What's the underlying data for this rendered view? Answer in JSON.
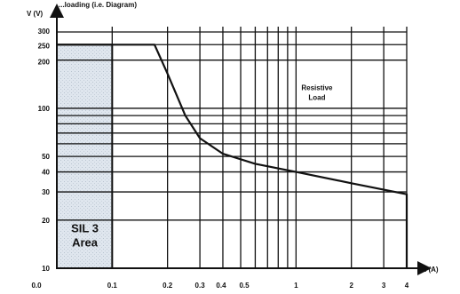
{
  "header": {
    "text": "...loading (i.e. Diagram)"
  },
  "chart_data": {
    "type": "line",
    "xlabel": "I (A)",
    "ylabel": "V (V)",
    "x_scale": "log",
    "y_scale": "log",
    "xlim": [
      0.05,
      4
    ],
    "ylim": [
      10,
      300
    ],
    "x_tick_labels": [
      {
        "value": 0.05,
        "label": "0.0"
      },
      {
        "value": 0.1,
        "label": "0.1"
      },
      {
        "value": 0.2,
        "label": "0.2"
      },
      {
        "value": 0.3,
        "label": "0.3"
      },
      {
        "value": 0.4,
        "label": "0.4"
      },
      {
        "value": 0.5,
        "label": "0.5"
      },
      {
        "value": 1,
        "label": "1"
      },
      {
        "value": 2,
        "label": "2"
      },
      {
        "value": 3,
        "label": "3"
      },
      {
        "value": 4,
        "label": "4"
      }
    ],
    "x_grid_values": [
      0.1,
      0.2,
      0.3,
      0.4,
      0.5,
      0.6,
      0.7,
      0.8,
      0.9,
      1,
      2,
      3,
      4
    ],
    "y_tick_labels": [
      {
        "value": 10,
        "label": "10"
      },
      {
        "value": 20,
        "label": "20"
      },
      {
        "value": 30,
        "label": "30"
      },
      {
        "value": 40,
        "label": "40"
      },
      {
        "value": 50,
        "label": "50"
      },
      {
        "value": 100,
        "label": "100"
      },
      {
        "value": 200,
        "label": "200"
      },
      {
        "value": 250,
        "label": "250"
      },
      {
        "value": 300,
        "label": "300"
      }
    ],
    "y_grid_values": [
      20,
      30,
      40,
      50,
      60,
      70,
      80,
      90,
      100,
      200,
      250,
      300
    ],
    "grid": true,
    "series": [
      {
        "name": "",
        "points": [
          {
            "x": 0.05,
            "y": 250
          },
          {
            "x": 0.17,
            "y": 250
          },
          {
            "x": 0.2,
            "y": 165
          },
          {
            "x": 0.25,
            "y": 90
          },
          {
            "x": 0.3,
            "y": 65
          },
          {
            "x": 0.4,
            "y": 52
          },
          {
            "x": 0.6,
            "y": 45
          },
          {
            "x": 1,
            "y": 40
          },
          {
            "x": 2,
            "y": 34
          },
          {
            "x": 4,
            "y": 29
          },
          {
            "x": 4,
            "y": 10
          }
        ]
      }
    ],
    "shaded_region": {
      "x": [
        0.05,
        0.1
      ],
      "y": [
        10,
        250
      ]
    },
    "annotations": [
      {
        "line1": "Resistive",
        "line2": "Load",
        "x": 1.3,
        "y": 130
      },
      {
        "line1": "SIL 3",
        "line2": "Area",
        "x": 0.071,
        "y": 13
      }
    ]
  }
}
